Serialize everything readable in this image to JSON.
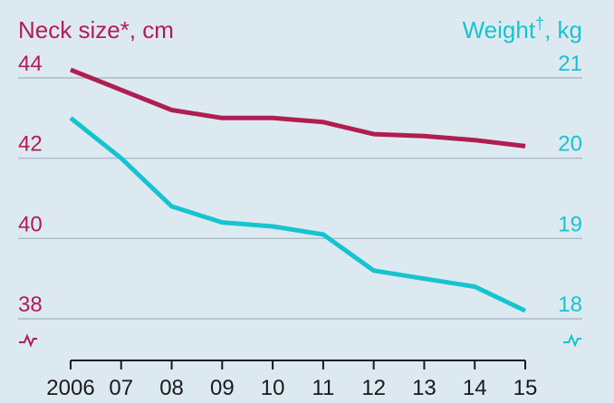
{
  "chart_data": {
    "type": "line",
    "x": [
      "2006",
      "07",
      "08",
      "09",
      "10",
      "11",
      "12",
      "13",
      "14",
      "15"
    ],
    "series": [
      {
        "name": "Neck size*, cm",
        "axis": "left",
        "color": "#b01e51",
        "values": [
          44.2,
          43.7,
          43.2,
          43.0,
          43.0,
          42.9,
          42.6,
          42.55,
          42.45,
          42.3
        ]
      },
      {
        "name": "Weight†, kg",
        "axis": "right",
        "color": "#16c4cf",
        "values": [
          20.5,
          20.0,
          19.4,
          19.2,
          19.15,
          19.05,
          18.6,
          18.5,
          18.4,
          18.1
        ]
      }
    ],
    "left_axis": {
      "label": "Neck size*, cm",
      "ticks": [
        "44",
        "42",
        "40",
        "38"
      ],
      "range": [
        38,
        44
      ],
      "color": "#b01e51",
      "broken": true
    },
    "right_axis": {
      "label_main": "Weight",
      "label_sup": "†",
      "label_unit": ", kg",
      "ticks": [
        "21",
        "20",
        "19",
        "18"
      ],
      "range": [
        18,
        21
      ],
      "color": "#16c4cf",
      "broken": true
    },
    "grid": "horizontal",
    "background": "#dde9f1"
  }
}
